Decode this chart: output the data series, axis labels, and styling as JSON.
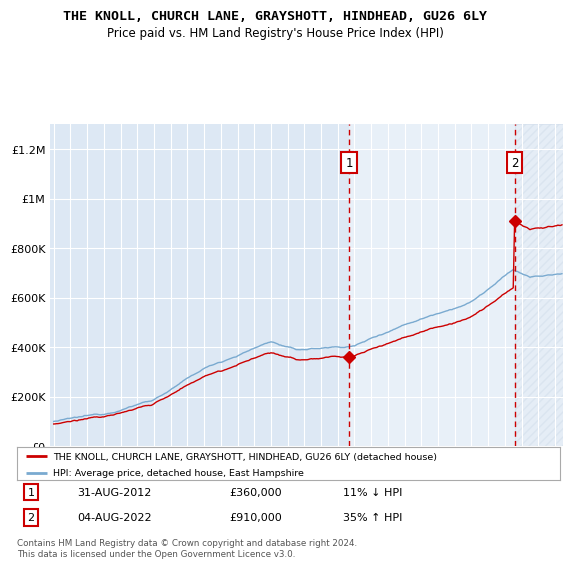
{
  "title": "THE KNOLL, CHURCH LANE, GRAYSHOTT, HINDHEAD, GU26 6LY",
  "subtitle": "Price paid vs. HM Land Registry's House Price Index (HPI)",
  "legend_line1": "THE KNOLL, CHURCH LANE, GRAYSHOTT, HINDHEAD, GU26 6LY (detached house)",
  "legend_line2": "HPI: Average price, detached house, East Hampshire",
  "annotation1_label": "1",
  "annotation1_date": "31-AUG-2012",
  "annotation1_price": "£360,000",
  "annotation1_hpi": "11% ↓ HPI",
  "annotation2_label": "2",
  "annotation2_date": "04-AUG-2022",
  "annotation2_price": "£910,000",
  "annotation2_hpi": "35% ↑ HPI",
  "footer": "Contains HM Land Registry data © Crown copyright and database right 2024.\nThis data is licensed under the Open Government Licence v3.0.",
  "sale1_year": 2012.67,
  "sale1_price": 360000,
  "sale2_year": 2022.58,
  "sale2_price": 910000,
  "background_color": "#dde8f4",
  "shaded_region_color": "#e8f0f8",
  "red_line_color": "#cc0000",
  "blue_line_color": "#7aaad0",
  "dashed_line_color": "#cc0000",
  "grid_color": "#ffffff",
  "ylim_max": 1300000,
  "xlim_start": 1994.8,
  "xlim_end": 2025.5
}
